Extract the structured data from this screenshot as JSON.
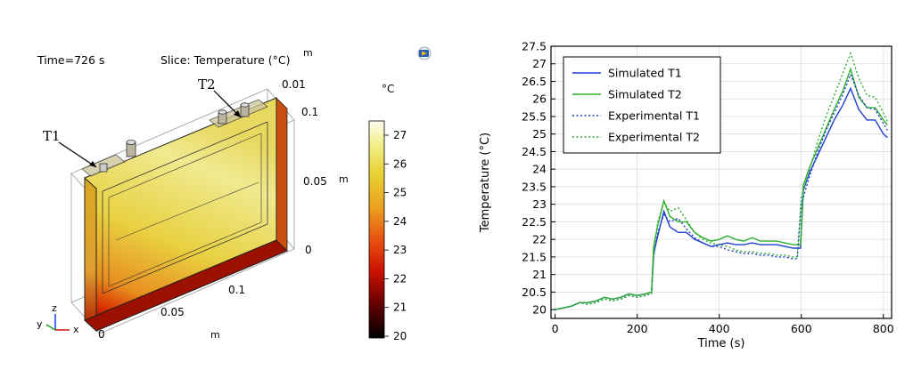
{
  "left_panel": {
    "time_label": "Time=726 s",
    "slice_label": "Slice: Temperature (°C)",
    "unit_m_top": "m",
    "colorbar_unit": "°C",
    "colorbar_ticks": [
      "27",
      "26",
      "25",
      "24",
      "23",
      "22",
      "21",
      "20"
    ],
    "z_ticks": [
      "0.01",
      "0.1",
      "0.05",
      "0"
    ],
    "z_unit": "m",
    "x_ticks": [
      "0",
      "0.05",
      "0.1"
    ],
    "x_unit": "m",
    "probe_labels": [
      "T1",
      "T2"
    ],
    "axis_letters": {
      "y": "y",
      "z": "z",
      "x": "x"
    },
    "colors": {
      "cold": "#000000",
      "mid": "#cc2200",
      "warm": "#e8c020",
      "hot": "#fefef0"
    }
  },
  "chart_data": {
    "type": "line",
    "title": "",
    "xlabel": "Time (s)",
    "ylabel": "Temperature (°C)",
    "xlim": [
      -10,
      820
    ],
    "ylim": [
      19.75,
      27.5
    ],
    "xticks": [
      0,
      200,
      400,
      600,
      800
    ],
    "yticks": [
      20,
      20.5,
      21,
      21.5,
      22,
      22.5,
      23,
      23.5,
      24,
      24.5,
      25,
      25.5,
      26,
      26.5,
      27,
      27.5
    ],
    "grid": true,
    "legend_position": "top-left",
    "series": [
      {
        "name": "Simulated T1",
        "color": "#1f3fd0",
        "style": "solid",
        "x": [
          0,
          20,
          40,
          60,
          80,
          100,
          120,
          140,
          160,
          180,
          200,
          220,
          235,
          240,
          250,
          265,
          280,
          300,
          320,
          340,
          360,
          380,
          400,
          420,
          440,
          460,
          480,
          500,
          520,
          540,
          560,
          580,
          598,
          605,
          620,
          640,
          660,
          680,
          700,
          720,
          740,
          760,
          780,
          800,
          810
        ],
        "y": [
          20.0,
          20.05,
          20.1,
          20.2,
          20.2,
          20.25,
          20.35,
          20.3,
          20.35,
          20.45,
          20.4,
          20.45,
          20.5,
          21.6,
          22.1,
          22.8,
          22.35,
          22.2,
          22.2,
          22.0,
          21.9,
          21.8,
          21.85,
          21.9,
          21.85,
          21.85,
          21.9,
          21.85,
          21.85,
          21.85,
          21.8,
          21.75,
          21.75,
          23.4,
          23.9,
          24.4,
          24.9,
          25.4,
          25.8,
          26.3,
          25.7,
          25.4,
          25.4,
          25.0,
          24.9
        ]
      },
      {
        "name": "Simulated T2",
        "color": "#2fae2f",
        "style": "solid",
        "x": [
          0,
          20,
          40,
          60,
          80,
          100,
          120,
          140,
          160,
          180,
          200,
          220,
          235,
          240,
          250,
          265,
          280,
          300,
          320,
          340,
          360,
          380,
          400,
          420,
          440,
          460,
          480,
          500,
          520,
          540,
          560,
          580,
          598,
          605,
          620,
          640,
          660,
          680,
          700,
          720,
          740,
          760,
          780,
          800,
          810
        ],
        "y": [
          20.0,
          20.05,
          20.1,
          20.2,
          20.2,
          20.25,
          20.35,
          20.3,
          20.35,
          20.45,
          20.4,
          20.45,
          20.5,
          21.8,
          22.4,
          23.1,
          22.65,
          22.5,
          22.5,
          22.2,
          22.05,
          21.95,
          22.0,
          22.1,
          22.0,
          21.95,
          22.05,
          21.95,
          21.95,
          21.95,
          21.9,
          21.85,
          21.85,
          23.55,
          24.05,
          24.6,
          25.15,
          25.7,
          26.2,
          26.85,
          26.05,
          25.75,
          25.75,
          25.4,
          25.25
        ]
      },
      {
        "name": "Experimental T1",
        "color": "#1f3fd0",
        "style": "dotted",
        "x": [
          0,
          20,
          40,
          60,
          80,
          100,
          120,
          140,
          160,
          180,
          200,
          220,
          235,
          240,
          250,
          265,
          280,
          300,
          320,
          340,
          360,
          380,
          400,
          420,
          440,
          460,
          480,
          500,
          520,
          540,
          560,
          580,
          590,
          600,
          620,
          640,
          660,
          680,
          700,
          720,
          740,
          760,
          780,
          800,
          810
        ],
        "y": [
          20.0,
          20.05,
          20.1,
          20.2,
          20.15,
          20.2,
          20.3,
          20.25,
          20.3,
          20.4,
          20.35,
          20.4,
          20.45,
          21.5,
          22.2,
          22.7,
          22.5,
          22.6,
          22.3,
          22.05,
          21.9,
          21.8,
          21.8,
          21.7,
          21.65,
          21.6,
          21.6,
          21.55,
          21.55,
          21.5,
          21.5,
          21.45,
          21.45,
          23.0,
          23.8,
          24.5,
          25.1,
          25.6,
          26.1,
          26.7,
          26.1,
          25.75,
          25.7,
          25.3,
          25.1
        ]
      },
      {
        "name": "Experimental T2",
        "color": "#2fae2f",
        "style": "dotted",
        "x": [
          0,
          20,
          40,
          60,
          80,
          100,
          120,
          140,
          160,
          180,
          200,
          220,
          235,
          240,
          250,
          265,
          280,
          300,
          320,
          340,
          360,
          380,
          400,
          420,
          440,
          460,
          480,
          500,
          520,
          540,
          560,
          580,
          590,
          600,
          620,
          640,
          660,
          680,
          700,
          720,
          740,
          760,
          780,
          800,
          810
        ],
        "y": [
          20.0,
          20.05,
          20.1,
          20.2,
          20.15,
          20.2,
          20.3,
          20.25,
          20.3,
          20.4,
          20.35,
          20.4,
          20.45,
          21.6,
          22.5,
          23.05,
          22.8,
          22.9,
          22.55,
          22.2,
          22.0,
          21.9,
          21.85,
          21.8,
          21.7,
          21.65,
          21.65,
          21.6,
          21.6,
          21.55,
          21.55,
          21.5,
          21.5,
          23.2,
          24.0,
          24.8,
          25.5,
          26.1,
          26.7,
          27.3,
          26.6,
          26.1,
          26.05,
          25.6,
          25.35
        ]
      }
    ]
  }
}
